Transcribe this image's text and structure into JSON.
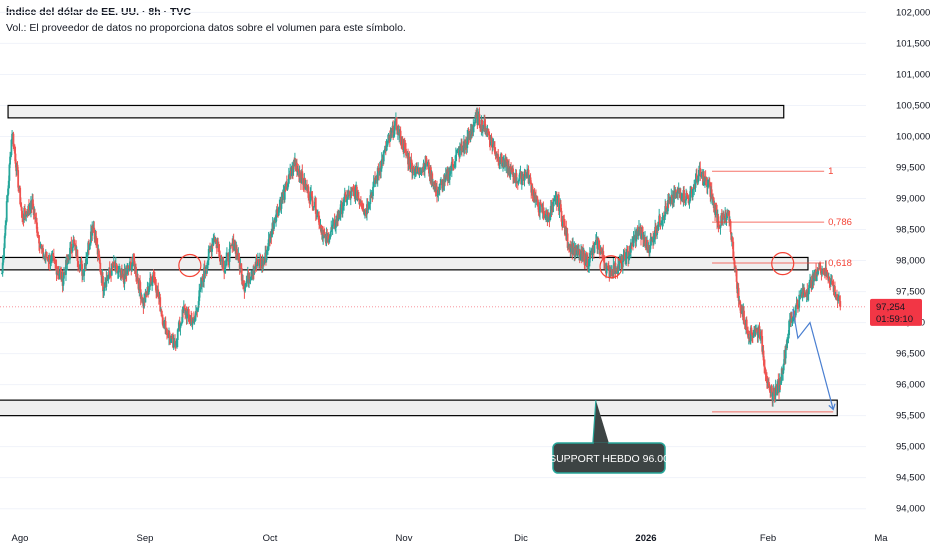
{
  "header": {
    "title": "Índice del dólar de EE. UU. · 8h · TVC",
    "volume_note": "Vol.: El proveedor de datos no proporciona datos sobre el volumen para este símbolo."
  },
  "colors": {
    "up": "#26a69a",
    "down": "#ef5350",
    "zone_fill": "#efefef",
    "zone_border": "#000000",
    "fib": "#f44336",
    "projection": "#4a7fd1",
    "callout_bg": "#3d4444",
    "callout_border": "#26a69a",
    "price_badge": "#f23645"
  },
  "chart_data": {
    "type": "candlestick",
    "y_axis": {
      "ylim": [
        93.85,
        102.2
      ],
      "tick_labels": [
        "102,000",
        "101,500",
        "101,000",
        "100,500",
        "100,000",
        "99,500",
        "99,000",
        "98,500",
        "98,000",
        "97,500",
        "97,000",
        "96,500",
        "96,000",
        "95,500",
        "95,000",
        "94,500",
        "94,000"
      ],
      "tick_values": [
        102.0,
        101.5,
        101.0,
        100.5,
        100.0,
        99.5,
        99.0,
        98.5,
        98.0,
        97.5,
        97.0,
        96.5,
        96.0,
        95.5,
        95.0,
        94.5,
        94.0
      ],
      "grid": true
    },
    "x_axis": {
      "labels": [
        "Ago",
        "Sep",
        "Oct",
        "Nov",
        "Dic",
        "2026",
        "Feb",
        "Ma"
      ],
      "bold": [
        false,
        false,
        false,
        false,
        false,
        true,
        false,
        false
      ]
    },
    "current_price": {
      "value": 97.254,
      "label": "97,254",
      "countdown": "01:59:10"
    },
    "path_points": [
      [
        0,
        97.8
      ],
      [
        1,
        100.1
      ],
      [
        2,
        98.7
      ],
      [
        3,
        98.9
      ],
      [
        4,
        98.1
      ],
      [
        5,
        98.0
      ],
      [
        6,
        97.7
      ],
      [
        7,
        98.3
      ],
      [
        8,
        97.8
      ],
      [
        9,
        98.6
      ],
      [
        10,
        97.6
      ],
      [
        11,
        97.9
      ],
      [
        12,
        97.7
      ],
      [
        13,
        98.0
      ],
      [
        14,
        97.3
      ],
      [
        15,
        97.8
      ],
      [
        16,
        97.0
      ],
      [
        17,
        96.6
      ],
      [
        18,
        97.2
      ],
      [
        19,
        97.0
      ],
      [
        20,
        97.8
      ],
      [
        21,
        98.4
      ],
      [
        22,
        97.9
      ],
      [
        23,
        98.3
      ],
      [
        24,
        97.6
      ],
      [
        25,
        97.9
      ],
      [
        26,
        98.0
      ],
      [
        27,
        98.7
      ],
      [
        28,
        99.1
      ],
      [
        29,
        99.6
      ],
      [
        30,
        99.2
      ],
      [
        31,
        98.9
      ],
      [
        32,
        98.3
      ],
      [
        33,
        98.6
      ],
      [
        34,
        99.0
      ],
      [
        35,
        99.1
      ],
      [
        36,
        98.8
      ],
      [
        37,
        99.3
      ],
      [
        38,
        99.8
      ],
      [
        39,
        100.2
      ],
      [
        40,
        99.7
      ],
      [
        41,
        99.4
      ],
      [
        42,
        99.6
      ],
      [
        43,
        99.1
      ],
      [
        44,
        99.3
      ],
      [
        45,
        99.7
      ],
      [
        46,
        99.9
      ],
      [
        47,
        100.3
      ],
      [
        48,
        100.1
      ],
      [
        49,
        99.7
      ],
      [
        50,
        99.5
      ],
      [
        51,
        99.3
      ],
      [
        52,
        99.4
      ],
      [
        53,
        98.9
      ],
      [
        54,
        98.7
      ],
      [
        55,
        99.0
      ],
      [
        56,
        98.3
      ],
      [
        57,
        98.1
      ],
      [
        58,
        98.0
      ],
      [
        59,
        98.3
      ],
      [
        60,
        97.8
      ],
      [
        61,
        97.9
      ],
      [
        62,
        98.1
      ],
      [
        63,
        98.5
      ],
      [
        64,
        98.2
      ],
      [
        65,
        98.6
      ],
      [
        66,
        98.9
      ],
      [
        67,
        99.1
      ],
      [
        68,
        99.0
      ],
      [
        69,
        99.4
      ],
      [
        70,
        99.2
      ],
      [
        71,
        98.6
      ],
      [
        72,
        98.7
      ],
      [
        73,
        97.3
      ],
      [
        74,
        96.8
      ],
      [
        75,
        96.9
      ],
      [
        76,
        95.8
      ],
      [
        77,
        96.0
      ],
      [
        78,
        97.0
      ],
      [
        79,
        97.4
      ],
      [
        80,
        97.6
      ],
      [
        81,
        97.9
      ],
      [
        82,
        97.7
      ],
      [
        83,
        97.25
      ]
    ],
    "zones": [
      {
        "low": 100.3,
        "high": 100.5,
        "x_range": [
          0.6,
          77.4
        ]
      },
      {
        "low": 97.85,
        "high": 98.05,
        "x_range": [
          -2,
          79.8
        ]
      },
      {
        "low": 95.5,
        "high": 95.75,
        "x_range": [
          -2,
          82.7
        ]
      }
    ],
    "fib_levels": [
      {
        "label": "1",
        "value": 99.44
      },
      {
        "label": "0,786",
        "value": 98.62
      },
      {
        "label": "0,618",
        "value": 97.96
      }
    ],
    "fib_x_range": [
      70.3,
      81.4
    ],
    "fib_base": {
      "value": 95.56,
      "x_range": [
        70.3,
        82.3
      ]
    },
    "circles": [
      {
        "x": 18.6,
        "y": 97.92
      },
      {
        "x": 60.3,
        "y": 97.9
      },
      {
        "x": 77.3,
        "y": 97.95
      }
    ],
    "projection": [
      [
        78.3,
        97.22
      ],
      [
        78.8,
        96.75
      ],
      [
        80.0,
        97.0
      ],
      [
        82.3,
        95.6
      ]
    ],
    "callout": {
      "text": "SUPPORT HEBDO 96.00",
      "anchor_x": 58.8,
      "anchor_y": 95.75
    }
  }
}
